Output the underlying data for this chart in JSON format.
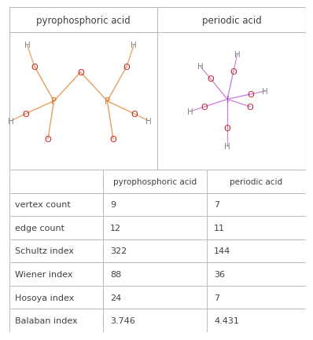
{
  "title_row": [
    "",
    "pyrophosphoric acid",
    "periodic acid"
  ],
  "rows": [
    [
      "vertex count",
      "9",
      "7"
    ],
    [
      "edge count",
      "12",
      "11"
    ],
    [
      "Schultz index",
      "322",
      "144"
    ],
    [
      "Wiener index",
      "88",
      "36"
    ],
    [
      "Hosoya index",
      "24",
      "7"
    ],
    [
      "Balaban index",
      "3.746",
      "4.431"
    ]
  ],
  "mol1_title": "pyrophosphoric acid",
  "mol2_title": "periodic acid",
  "background_color": "#ffffff",
  "text_color": "#404040",
  "grid_color": "#bbbbbb",
  "orange_color": "#e07820",
  "red_color": "#cc2222",
  "purple_color": "#9944bb",
  "gray_color": "#888888",
  "bond_color_orange": "#e8a060",
  "bond_color_purple": "#cc88dd"
}
